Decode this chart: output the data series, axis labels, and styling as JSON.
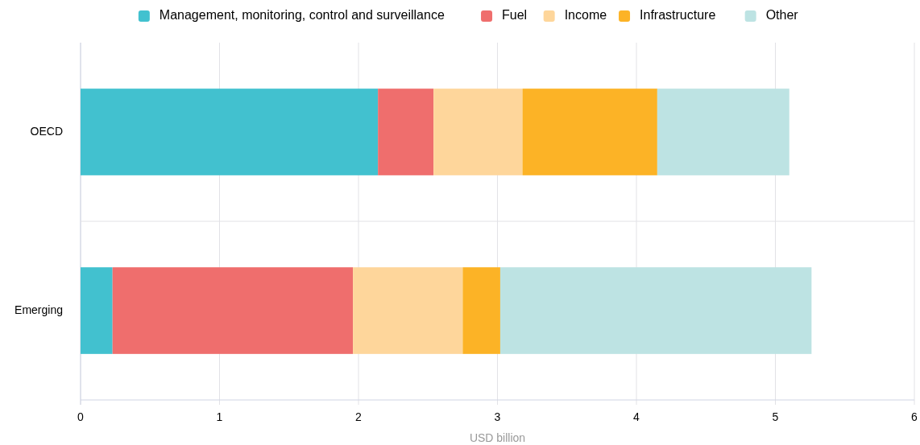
{
  "chart_data": {
    "type": "bar",
    "orientation": "horizontal",
    "stacked": true,
    "xlabel": "USD billion",
    "categories": [
      "OECD",
      "Emerging"
    ],
    "series": [
      {
        "name": "Management, monitoring, control and surveillance",
        "color": "#42c1cf",
        "values": [
          2.14,
          0.23
        ]
      },
      {
        "name": "Fuel",
        "color": "#ef6e6d",
        "values": [
          0.4,
          1.73
        ]
      },
      {
        "name": "Income",
        "color": "#fed69b",
        "values": [
          0.64,
          0.79
        ]
      },
      {
        "name": "Infrastructure",
        "color": "#fcb326",
        "values": [
          0.97,
          0.27
        ]
      },
      {
        "name": "Other",
        "color": "#bde3e3",
        "values": [
          0.95,
          2.24
        ]
      }
    ],
    "xlim": [
      0,
      6
    ],
    "xticks": [
      0,
      1,
      2,
      3,
      4,
      5,
      6
    ],
    "grid": "x",
    "legend": "top"
  }
}
